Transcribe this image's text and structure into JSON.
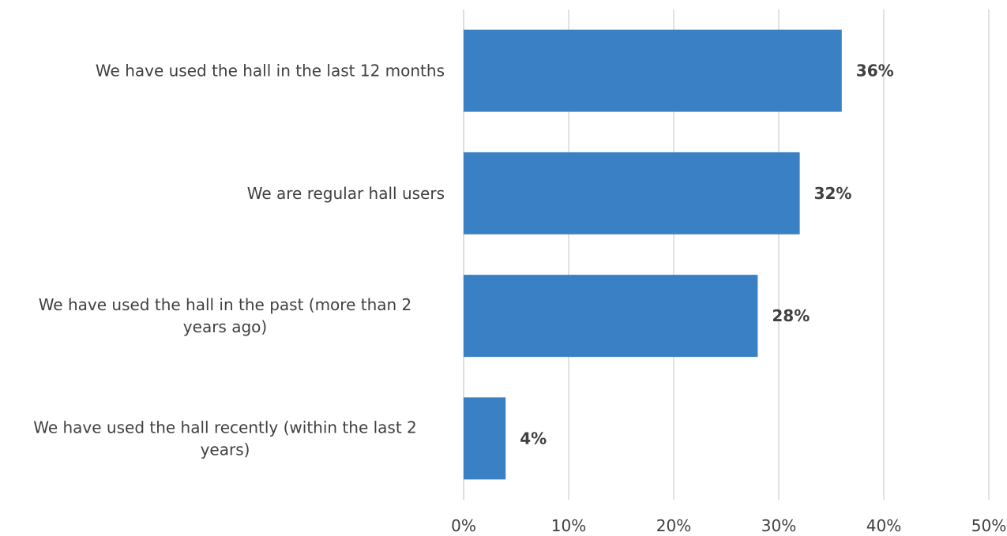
{
  "chart_data": {
    "type": "bar",
    "orientation": "horizontal",
    "categories": [
      "We have used the hall in the last 12 months",
      "We are regular hall users",
      "We have used the hall in the past (more than 2 years ago)",
      "We have used the hall recently (within the last 2 years)"
    ],
    "category_lines": [
      [
        "We have used the hall in the last 12 months"
      ],
      [
        "We are regular hall users"
      ],
      [
        "We have used the hall in the past (more than 2",
        "years ago)"
      ],
      [
        "We have used the hall recently (within the last 2",
        "years)"
      ]
    ],
    "values": [
      36,
      32,
      28,
      4
    ],
    "data_labels": [
      "36%",
      "32%",
      "28%",
      "4%"
    ],
    "xlim": [
      0,
      50
    ],
    "ticks": [
      0,
      10,
      20,
      30,
      40,
      50
    ],
    "tick_labels": [
      "0%",
      "10%",
      "20%",
      "30%",
      "40%",
      "50%"
    ],
    "grid": true,
    "legend": "none",
    "colors": {
      "bar": "#3A80C4",
      "grid": "#D9D9D9",
      "text": "#404040"
    }
  }
}
